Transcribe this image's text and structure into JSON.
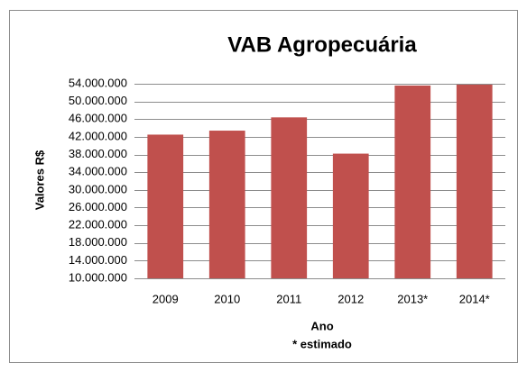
{
  "chart_data": {
    "type": "bar",
    "title": "VAB Agropecuária",
    "y_label": "Valores R$",
    "x_label": "Ano",
    "annotation": "* estimado",
    "categories": [
      "2009",
      "2010",
      "2011",
      "2012",
      "2013*",
      "2014*"
    ],
    "values": [
      42500000,
      43400000,
      46400000,
      38200000,
      53600000,
      53800000
    ],
    "color": "#c0504d",
    "ylim": [
      10000000,
      54000000
    ],
    "yticks": [
      {
        "value": 10000000,
        "label": "10.000.000"
      },
      {
        "value": 14000000,
        "label": "14.000.000"
      },
      {
        "value": 18000000,
        "label": "18.000.000"
      },
      {
        "value": 22000000,
        "label": "22.000.000"
      },
      {
        "value": 26000000,
        "label": "26.000.000"
      },
      {
        "value": 30000000,
        "label": "30.000.000"
      },
      {
        "value": 34000000,
        "label": "34.000.000"
      },
      {
        "value": 38000000,
        "label": "38.000.000"
      },
      {
        "value": 42000000,
        "label": "42.000.000"
      },
      {
        "value": 46000000,
        "label": "46.000.000"
      },
      {
        "value": 50000000,
        "label": "50.000.000"
      },
      {
        "value": 54000000,
        "label": "54.000.000"
      }
    ],
    "grid": true
  }
}
